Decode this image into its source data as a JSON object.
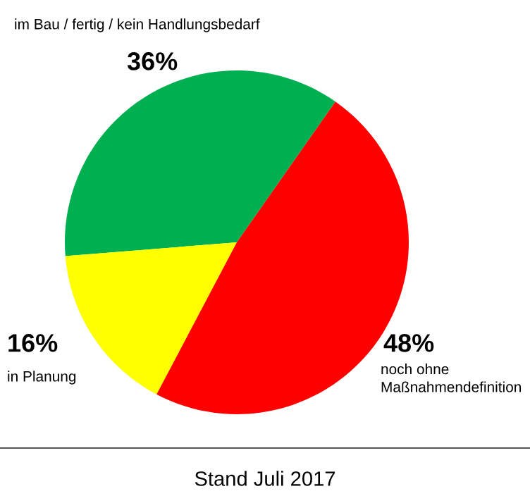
{
  "chart_data": {
    "type": "pie",
    "categories": [
      "im Bau / fertig / kein Handlungsbedarf",
      "in Planung",
      "noch ohne\nMaßnahmendefinition"
    ],
    "values": [
      36,
      16,
      48
    ],
    "value_labels": [
      "36%",
      "16%",
      "48%"
    ],
    "colors": [
      "#00b050",
      "#ffff00",
      "#ff0000"
    ],
    "annotations": [
      "Stand Juli 2017"
    ],
    "legend": false
  }
}
